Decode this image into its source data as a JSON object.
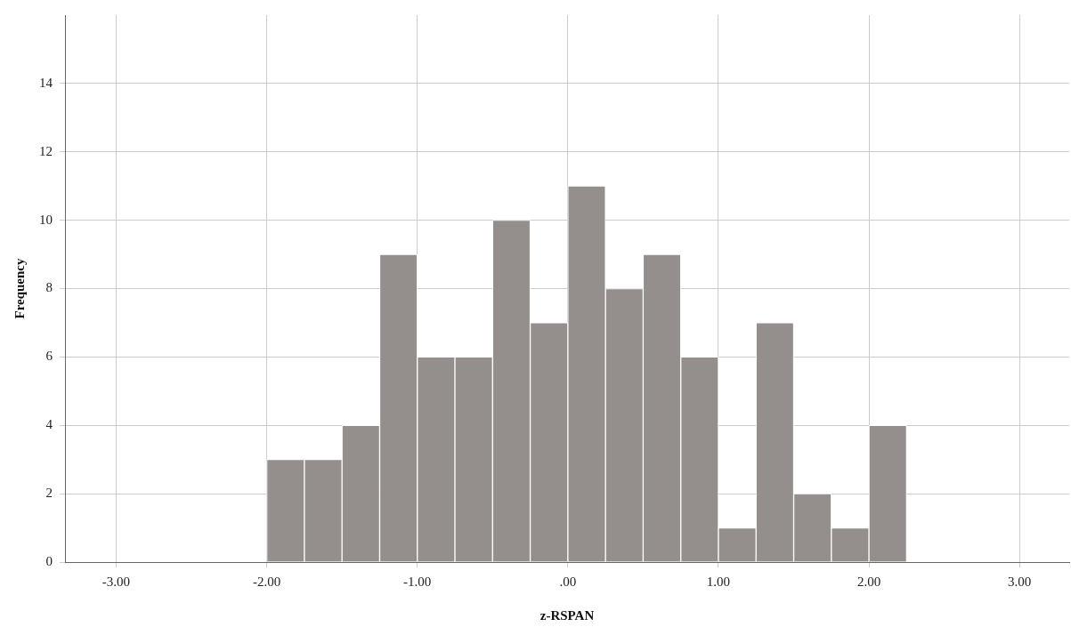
{
  "chart_data": {
    "type": "histogram",
    "xlabel": "z-RSPAN",
    "ylabel": "Frequency",
    "bins": [
      -2.0,
      -1.75,
      -1.5,
      -1.25,
      -1.0,
      -0.75,
      -0.5,
      -0.25,
      0.0,
      0.25,
      0.5,
      0.75,
      1.0,
      1.25,
      1.5,
      1.75,
      2.0,
      2.25
    ],
    "values": [
      3,
      3,
      4,
      9,
      6,
      6,
      10,
      7,
      11,
      8,
      9,
      6,
      1,
      7,
      2,
      1,
      4
    ],
    "color": "#948f8c",
    "xlim": [
      -3.34,
      3.33
    ],
    "ylim": [
      0,
      16
    ],
    "xticks": [
      {
        "value": -3,
        "label": "-3.00"
      },
      {
        "value": -2,
        "label": "-2.00"
      },
      {
        "value": -1,
        "label": "-1.00"
      },
      {
        "value": 0,
        "label": ".00"
      },
      {
        "value": 1,
        "label": "1.00"
      },
      {
        "value": 2,
        "label": "2.00"
      },
      {
        "value": 3,
        "label": "3.00"
      }
    ],
    "yticks": [
      0,
      2,
      4,
      6,
      8,
      10,
      12,
      14
    ],
    "grid": true
  }
}
